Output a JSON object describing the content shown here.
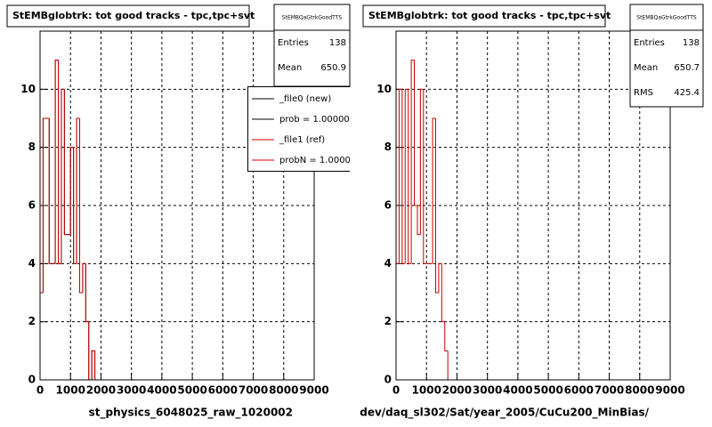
{
  "chart_data": [
    {
      "type": "histogram",
      "title": "StEMBglobtrk: tot good tracks - tpc,tpc+svt",
      "x_label": "st_physics_6048025_raw_1020002",
      "bins": [
        0,
        100,
        200,
        300,
        400,
        500,
        600,
        700,
        800,
        900,
        1000,
        1100,
        1200,
        1300,
        1400,
        1500,
        1600,
        1700,
        1800
      ],
      "series": [
        {
          "name": "_file0 (new)",
          "color": "#000000",
          "values": [
            3,
            9,
            9,
            4,
            4,
            11,
            4,
            10,
            5,
            5,
            8,
            4,
            9,
            3,
            4,
            2,
            0,
            1
          ]
        },
        {
          "name": "_file1 (ref)",
          "color": "#cc0000",
          "values": [
            3,
            9,
            9,
            4,
            4,
            11,
            4,
            10,
            5,
            5,
            8,
            4,
            9,
            3,
            4,
            2,
            0,
            1
          ]
        }
      ],
      "legend_notes": [
        "prob = 1.000000",
        "probN = 1.00000"
      ],
      "stats": {
        "title": "StEMBQaGtrkGoodTTS",
        "rows": [
          {
            "label": "Entries",
            "value": 138
          },
          {
            "label": "Mean",
            "value": 650.9
          }
        ]
      },
      "xlim": [
        0,
        9000
      ],
      "xticks": [
        0,
        1000,
        2000,
        3000,
        4000,
        5000,
        6000,
        7000,
        8000,
        9000
      ],
      "ylim": [
        0,
        12
      ],
      "yticks": [
        0,
        2,
        4,
        6,
        8,
        10
      ],
      "grid": true
    },
    {
      "type": "histogram",
      "title": "StEMBglobtrk: tot good tracks - tpc,tpc+svt",
      "x_label": "dev/daq_sl302/Sat/year_2005/CuCu200_MinBias/",
      "bins": [
        0,
        100,
        200,
        300,
        400,
        500,
        600,
        700,
        800,
        900,
        1000,
        1100,
        1200,
        1300,
        1400,
        1500,
        1600,
        1700,
        1800
      ],
      "series": [
        {
          "color": "#cc0000",
          "values": [
            4,
            10,
            4,
            10,
            4,
            11,
            6,
            5,
            10,
            4,
            4,
            4,
            9,
            3,
            4,
            2,
            1,
            0
          ]
        }
      ],
      "stats": {
        "title": "StEMBQaGtrkGoodTTS",
        "rows": [
          {
            "label": "Entries",
            "value": 138
          },
          {
            "label": "Mean",
            "value": 650.7
          },
          {
            "label": "RMS",
            "value": 425.4
          }
        ]
      },
      "xlim": [
        0,
        9000
      ],
      "xticks": [
        0,
        1000,
        2000,
        3000,
        4000,
        5000,
        6000,
        7000,
        8000,
        9000
      ],
      "ylim": [
        0,
        12
      ],
      "yticks": [
        0,
        2,
        4,
        6,
        8,
        10
      ],
      "grid": true
    }
  ]
}
